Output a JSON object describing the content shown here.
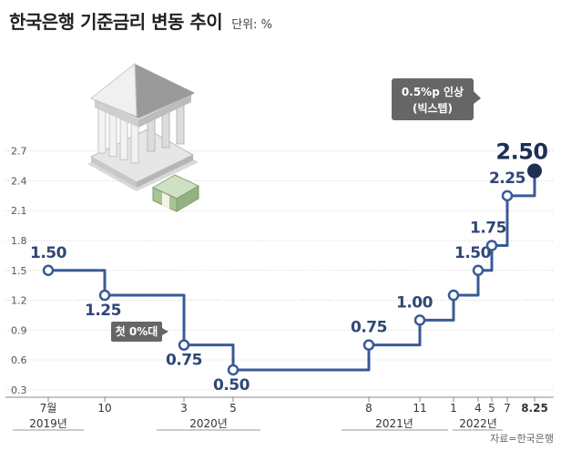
{
  "header": {
    "title": "한국은행 기준금리 변동 추이",
    "unit_label": "단위: %"
  },
  "source": "자료=한국은행",
  "colors": {
    "line": "#3a5a95",
    "final_dot": "#1e2f55",
    "label": "#2f4777",
    "grid": "#d0d0d0",
    "callout_bg": "#666666"
  },
  "chart_data": {
    "type": "line",
    "step": true,
    "title": "한국은행 기준금리 변동 추이",
    "ylabel": "단위: %",
    "ylim": [
      0.25,
      2.75
    ],
    "yticks": [
      "2.7",
      "2.4",
      "2.1",
      "1.8",
      "1.5",
      "1.2",
      "0.9",
      "0.6",
      "0.3"
    ],
    "grid": true,
    "x_ticks": [
      "7월",
      "10",
      "3",
      "5",
      "8",
      "11",
      "1",
      "4",
      "5",
      "7",
      "8.25"
    ],
    "year_labels": [
      "2019년",
      "2020년",
      "2021년",
      "2022년"
    ],
    "points": [
      {
        "x": "7월",
        "y": 1.5,
        "label": "1.50"
      },
      {
        "x": "10",
        "y": 1.25,
        "label": "1.25"
      },
      {
        "x": "3",
        "y": 0.75,
        "label": "0.75"
      },
      {
        "x": "5",
        "y": 0.5,
        "label": "0.50"
      },
      {
        "x": "8",
        "y": 0.75,
        "label": "0.75"
      },
      {
        "x": "11",
        "y": 1.0,
        "label": "1.00"
      },
      {
        "x": "1",
        "y": 1.25,
        "label": ""
      },
      {
        "x": "4",
        "y": 1.5,
        "label": "1.50"
      },
      {
        "x": "5",
        "y": 1.75,
        "label": "1.75"
      },
      {
        "x": "7",
        "y": 2.25,
        "label": "2.25"
      },
      {
        "x": "8.25",
        "y": 2.5,
        "label": "2.50"
      }
    ],
    "annotations": [
      {
        "text": "첫 0%대"
      },
      {
        "text": "0.5%p 인상"
      },
      {
        "text": "(빅스텝)"
      }
    ]
  }
}
